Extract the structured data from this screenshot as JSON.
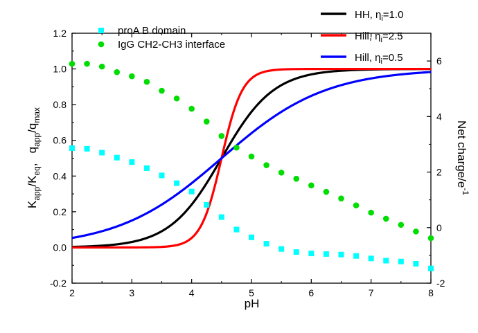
{
  "chart_data": {
    "type": "line",
    "x": {
      "label": "pH",
      "range": [
        2,
        8
      ],
      "ticks": [
        "2",
        "3",
        "4",
        "5",
        "6",
        "7",
        "8"
      ]
    },
    "y_left": {
      "label_main": "K",
      "label_sub1": "app",
      "label_mid": "/K",
      "label_sub2": "eq",
      "label_gap": ",   q",
      "label_sub3": "app",
      "label_mid2": "/q",
      "label_sub4": "max",
      "range": [
        -0.2,
        1.2
      ],
      "ticks": [
        "-0.2",
        "0.0",
        "0.2",
        "0.4",
        "0.6",
        "0.8",
        "1.0",
        "1.2"
      ]
    },
    "y_right": {
      "label_main": "Net charge/e",
      "label_sup": "-1",
      "range": [
        -2,
        7
      ],
      "ticks": [
        "-2",
        "0",
        "2",
        "4",
        "6"
      ]
    },
    "grid": false,
    "curves": [
      {
        "label_main": "HH, η",
        "label_sub": "i",
        "label_tail": "=1.0",
        "eta": 1.0,
        "color": "#000000"
      },
      {
        "label_main": "Hill, η",
        "label_sub": "i",
        "label_tail": "=2.5",
        "eta": 2.5,
        "color": "#ff0000"
      },
      {
        "label_main": "Hill, η",
        "label_sub": "i",
        "label_tail": "=0.5",
        "eta": 0.5,
        "color": "#0000ff"
      }
    ],
    "curve_midpoint_pH": 4.5,
    "scatter": [
      {
        "name": "proA B domain",
        "color": "#00ffff",
        "marker": "square",
        "points": [
          [
            2.0,
            2.86
          ],
          [
            2.25,
            2.84
          ],
          [
            2.5,
            2.7
          ],
          [
            2.75,
            2.52
          ],
          [
            3.0,
            2.36
          ],
          [
            3.25,
            2.14
          ],
          [
            3.5,
            1.88
          ],
          [
            3.75,
            1.6
          ],
          [
            4.0,
            1.3
          ],
          [
            4.25,
            0.82
          ],
          [
            4.5,
            0.38
          ],
          [
            4.75,
            -0.07
          ],
          [
            5.0,
            -0.35
          ],
          [
            5.25,
            -0.58
          ],
          [
            5.5,
            -0.77
          ],
          [
            5.75,
            -0.88
          ],
          [
            6.0,
            -0.93
          ],
          [
            6.25,
            -0.95
          ],
          [
            6.5,
            -0.97
          ],
          [
            6.75,
            -1.02
          ],
          [
            7.0,
            -1.11
          ],
          [
            7.25,
            -1.19
          ],
          [
            7.5,
            -1.22
          ],
          [
            7.75,
            -1.3
          ],
          [
            8.0,
            -1.47
          ]
        ]
      },
      {
        "name": "IgG CH2-CH3 interface",
        "color": "#00dd00",
        "marker": "circle",
        "points": [
          [
            2.0,
            5.9
          ],
          [
            2.25,
            5.9
          ],
          [
            2.5,
            5.8
          ],
          [
            2.75,
            5.6
          ],
          [
            3.0,
            5.45
          ],
          [
            3.25,
            5.25
          ],
          [
            3.5,
            4.93
          ],
          [
            3.75,
            4.65
          ],
          [
            4.0,
            4.28
          ],
          [
            4.25,
            3.82
          ],
          [
            4.5,
            3.3
          ],
          [
            4.75,
            2.88
          ],
          [
            5.0,
            2.56
          ],
          [
            5.25,
            2.25
          ],
          [
            5.5,
            1.98
          ],
          [
            5.75,
            1.76
          ],
          [
            6.0,
            1.52
          ],
          [
            6.25,
            1.29
          ],
          [
            6.5,
            1.05
          ],
          [
            6.75,
            0.8
          ],
          [
            7.0,
            0.54
          ],
          [
            7.25,
            0.32
          ],
          [
            7.5,
            0.1
          ],
          [
            7.75,
            -0.14
          ],
          [
            8.0,
            -0.38
          ]
        ]
      }
    ],
    "legend": {
      "right_position": "top-right",
      "left_position": "top-left"
    }
  }
}
